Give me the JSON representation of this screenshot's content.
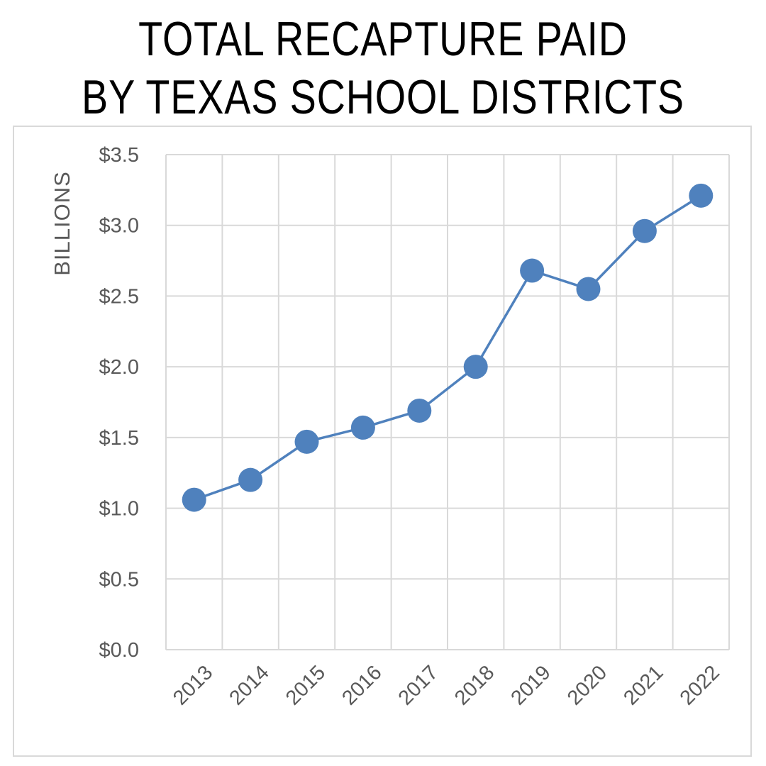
{
  "title_lines": [
    "TOTAL RECAPTURE PAID",
    "BY TEXAS SCHOOL DISTRICTS"
  ],
  "colors": {
    "series": "#4f81bd",
    "grid": "#d9d9d9",
    "text": "#595959",
    "title": "#000000"
  },
  "chart_data": {
    "type": "line",
    "title": "TOTAL RECAPTURE PAID BY TEXAS SCHOOL DISTRICTS",
    "xlabel": "",
    "ylabel": "BILLIONS",
    "categories": [
      "2013",
      "2014",
      "2015",
      "2016",
      "2017",
      "2018",
      "2019",
      "2020",
      "2021",
      "2022"
    ],
    "series": [
      {
        "values": [
          1.06,
          1.2,
          1.47,
          1.57,
          1.69,
          2.0,
          2.68,
          2.55,
          2.96,
          3.21
        ]
      }
    ],
    "ylim": [
      0,
      3.5
    ],
    "yticks": [
      0.0,
      0.5,
      1.0,
      1.5,
      2.0,
      2.5,
      3.0,
      3.5
    ],
    "ytick_labels": [
      "$0.0",
      "$0.5",
      "$1.0",
      "$1.5",
      "$2.0",
      "$2.5",
      "$3.0",
      "$3.5"
    ],
    "grid": true,
    "legend": "none",
    "markers": "circle"
  }
}
